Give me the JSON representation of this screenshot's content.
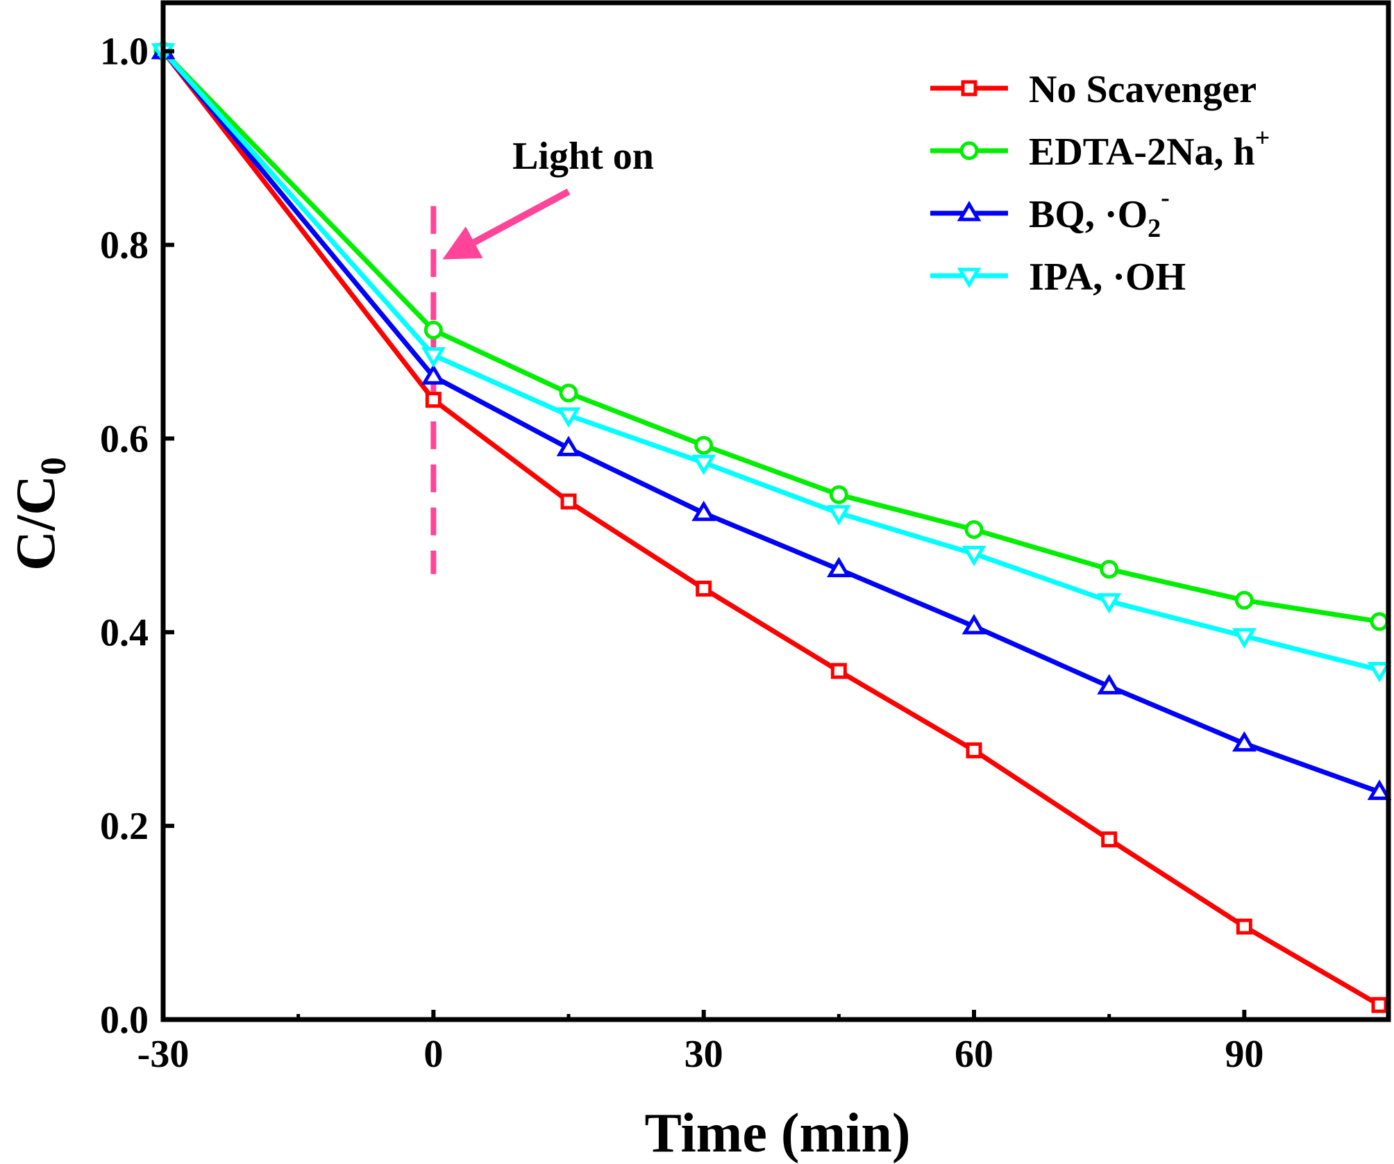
{
  "chart_data": {
    "type": "line",
    "title": "",
    "xlabel": "Time (min)",
    "ylabel": {
      "main": "C/C",
      "sub": "0"
    },
    "xlim": [
      -30,
      106
    ],
    "ylim": [
      0.0,
      1.05
    ],
    "xticks": [
      -30,
      0,
      30,
      60,
      90
    ],
    "xticks_minor": [
      -15,
      15,
      45,
      75
    ],
    "yticks": [
      0.0,
      0.2,
      0.4,
      0.6,
      0.8,
      1.0
    ],
    "xtick_labels": [
      "-30",
      "0",
      "30",
      "60",
      "90"
    ],
    "ytick_labels": [
      "0.0",
      "0.2",
      "0.4",
      "0.6",
      "0.8",
      "1.0"
    ],
    "grid": false,
    "legend_position": "top-right",
    "x": [
      -30,
      0,
      15,
      30,
      45,
      60,
      75,
      90,
      105
    ],
    "series": [
      {
        "key": "no-scavenger",
        "name": "No Scavenger",
        "color": "#ff0000",
        "marker": "square",
        "values": [
          1.0,
          0.64,
          0.535,
          0.445,
          0.36,
          0.278,
          0.186,
          0.096,
          0.015
        ]
      },
      {
        "key": "edta",
        "name": "EDTA-2Na, h",
        "sup": "+",
        "color": "#00ee00",
        "marker": "circle",
        "values": [
          1.0,
          0.712,
          0.647,
          0.593,
          0.542,
          0.506,
          0.465,
          0.433,
          0.411
        ]
      },
      {
        "key": "bq",
        "name": "BQ, ·O",
        "sub": "2",
        "sup": "-",
        "color": "#0000ff",
        "marker": "triangle-up",
        "values": [
          1.0,
          0.664,
          0.59,
          0.523,
          0.465,
          0.406,
          0.344,
          0.285,
          0.235
        ]
      },
      {
        "key": "ipa",
        "name": "IPA, ·OH",
        "color": "#00ffff",
        "marker": "triangle-down",
        "values": [
          1.0,
          0.686,
          0.624,
          0.575,
          0.523,
          0.481,
          0.432,
          0.396,
          0.361
        ]
      }
    ],
    "annotations": [
      {
        "text": "Light on",
        "x_line": 0,
        "y_line_range": [
          0.46,
          0.84
        ],
        "arrow_from": [
          15,
          0.855
        ],
        "arrow_to": [
          1,
          0.785
        ],
        "color": "#ff4499"
      }
    ]
  }
}
